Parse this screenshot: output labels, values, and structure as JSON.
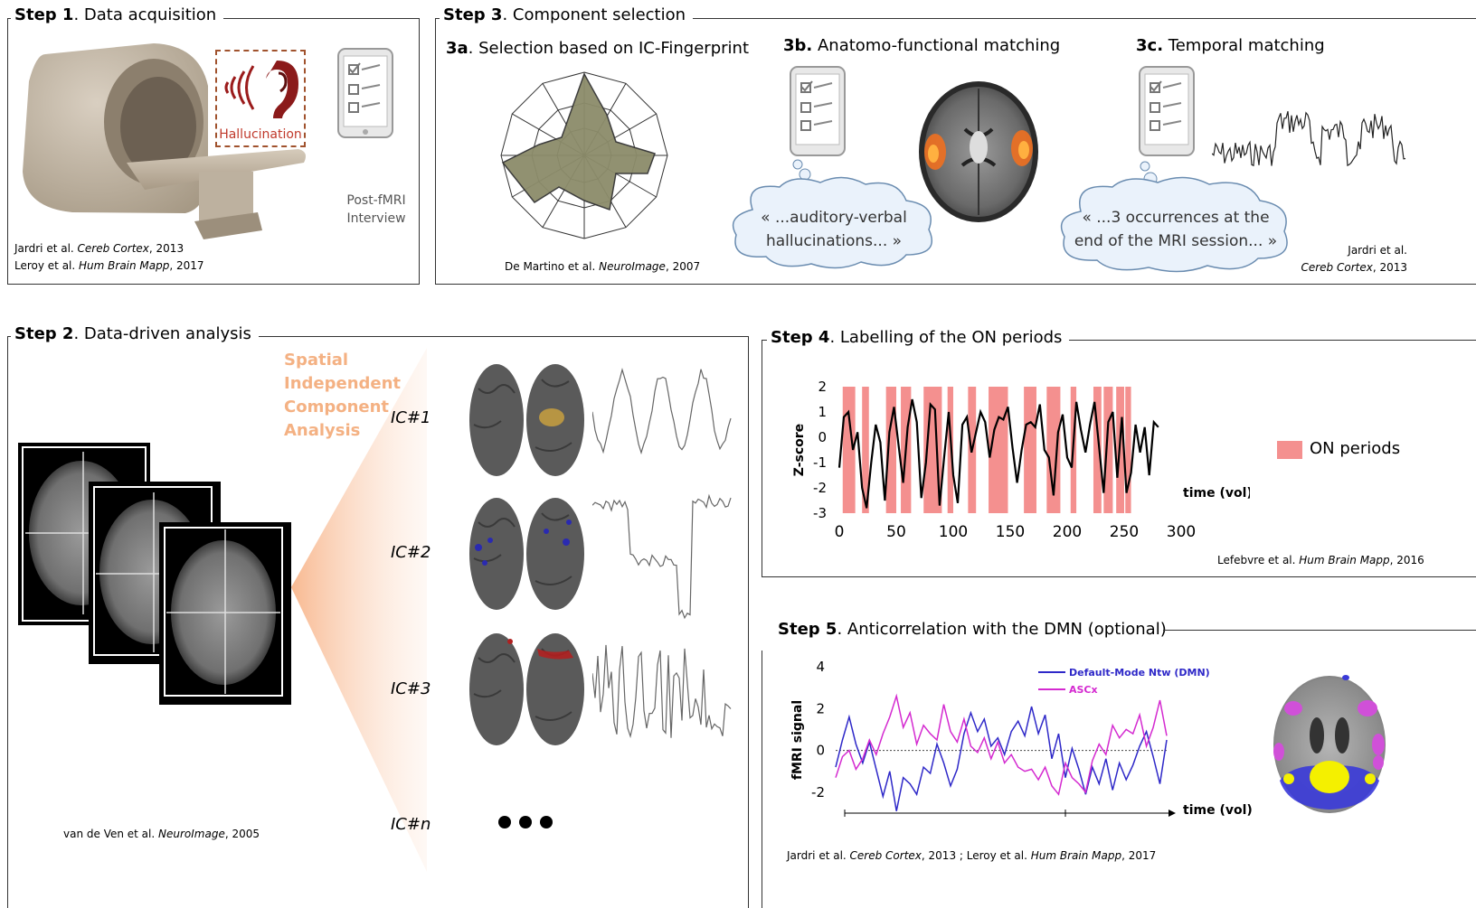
{
  "step1": {
    "title_bold": "Step 1",
    "title_rest": ". Data acquisition",
    "hallucination_label": "Hallucination",
    "interview_label_1": "Post-fMRI",
    "interview_label_2": "Interview",
    "ref1_pre": "Jardri et al. ",
    "ref1_journal": "Cereb Cortex",
    "ref1_post": ", 2013",
    "ref2_pre": "Leroy et al. ",
    "ref2_journal": "Hum Brain Mapp",
    "ref2_post": ", 2017"
  },
  "step3": {
    "title_bold": "Step 3",
    "title_rest": ". Component selection",
    "a_bold": "3a",
    "a_rest": ". Selection based on IC-Fingerprint",
    "b_bold": "3b.",
    "b_rest": " Anatomo-functional matching",
    "c_bold": "3c.",
    "c_rest": " Temporal matching",
    "a_ref_pre": "De Martino  et al. ",
    "a_ref_journal": "NeuroImage",
    "a_ref_post": ", 2007",
    "b_bubble_1": "« ...auditory-verbal",
    "b_bubble_2": "hallucinations... »",
    "c_bubble_1": "« ...3 occurrences at the",
    "c_bubble_2": "end of the MRI session... »",
    "c_ref_1": "Jardri et al.",
    "c_ref_journal": "Cereb Cortex",
    "c_ref_post": ", 2013"
  },
  "step2": {
    "title_bold": "Step 2",
    "title_rest": ". Data-driven analysis",
    "ica_lines": [
      "Spatial",
      "Independent",
      "Component",
      "Analysis"
    ],
    "ic_labels": [
      "IC#1",
      "IC#2",
      "IC#3",
      "IC#n"
    ],
    "ref_pre": "van de Ven et al. ",
    "ref_journal": "NeuroImage",
    "ref_post": ", 2005"
  },
  "step4": {
    "title_bold": "Step 4",
    "title_rest": ". Labelling of the ON periods",
    "legend_label": "ON periods",
    "ref_pre": "Lefebvre et al. ",
    "ref_journal": "Hum Brain Mapp",
    "ref_post": ", 2016"
  },
  "step5": {
    "title_bold": "Step 5",
    "title_rest": ". Anticorrelation with the DMN (optional)",
    "ref_pre": "Jardri et al. ",
    "ref_journal": "Cereb Cortex",
    "ref_mid": ", 2013 ; Leroy et al. ",
    "ref_journal2": "Hum Brain Mapp",
    "ref_post": ", 2017"
  },
  "colors": {
    "on_period": "#f4908f",
    "dmn": "#2e28c8",
    "ascx": "#d42ad0",
    "hallucination": "#c0392b",
    "ica_text": "#f4b183"
  },
  "chart_data": [
    {
      "type": "line",
      "ylabel": "Z-score",
      "xlabel": "time (vol)",
      "xlim": [
        0,
        300
      ],
      "ylim": [
        -3,
        2
      ],
      "xticks": [
        "0",
        "50",
        "100",
        "150",
        "200",
        "250",
        "300"
      ],
      "yticks": [
        "2",
        "1",
        "0",
        "-1",
        "-2",
        "-3"
      ],
      "legend": "right",
      "on_periods": [
        [
          3,
          14
        ],
        [
          20,
          26
        ],
        [
          41,
          50
        ],
        [
          54,
          63
        ],
        [
          74,
          90
        ],
        [
          95,
          100
        ],
        [
          113,
          120
        ],
        [
          131,
          148
        ],
        [
          162,
          173
        ],
        [
          182,
          194
        ],
        [
          203,
          208
        ],
        [
          223,
          230
        ],
        [
          232,
          240
        ],
        [
          243,
          250
        ],
        [
          251,
          256
        ]
      ],
      "series": [
        {
          "name": "",
          "x": [
            0,
            4,
            8,
            12,
            16,
            20,
            24,
            28,
            32,
            36,
            40,
            44,
            48,
            52,
            56,
            60,
            64,
            68,
            72,
            76,
            80,
            84,
            88,
            92,
            96,
            100,
            104,
            108,
            112,
            116,
            120,
            124,
            128,
            132,
            136,
            140,
            144,
            148,
            152,
            156,
            160,
            164,
            168,
            172,
            176,
            180,
            184,
            188,
            192,
            196,
            200,
            204,
            208,
            212,
            216,
            220,
            224,
            228,
            232,
            236,
            240,
            244,
            248,
            252,
            256,
            260,
            264,
            268,
            272,
            276,
            280
          ],
          "y": [
            -1.2,
            0.8,
            1.0,
            -0.5,
            0.2,
            -2.0,
            -2.8,
            -1.0,
            0.5,
            -0.2,
            -2.5,
            0.2,
            1.2,
            -0.3,
            -1.8,
            0.4,
            1.5,
            0.6,
            -2.4,
            -1.0,
            1.3,
            1.1,
            -2.7,
            -0.8,
            1.0,
            -1.5,
            -2.6,
            0.5,
            0.8,
            -0.6,
            0.2,
            1.0,
            0.6,
            -0.8,
            0.3,
            0.8,
            0.7,
            1.2,
            -0.4,
            -1.8,
            -0.5,
            0.5,
            0.6,
            0.4,
            1.3,
            -0.5,
            -0.8,
            -2.3,
            0.2,
            0.9,
            -0.8,
            -1.2,
            1.4,
            0.3,
            -0.6,
            0.5,
            1.4,
            -0.4,
            -2.2,
            0.6,
            1.0,
            -1.6,
            0.8,
            -2.2,
            -1.4,
            0.5,
            -0.6,
            0.4,
            -1.5,
            0.6,
            0.4
          ]
        }
      ]
    },
    {
      "type": "line",
      "ylabel": "fMRI signal",
      "xlabel": "time (vol)",
      "ylim": [
        -3,
        4
      ],
      "yticks": [
        "4",
        "2",
        "0",
        "-2"
      ],
      "legend": "top-right",
      "series": [
        {
          "name": "Default-Mode Ntw (DMN)",
          "values": [
            -0.8,
            0.5,
            1.6,
            0.3,
            -0.6,
            0.4,
            -0.9,
            -2.2,
            -1.0,
            -2.9,
            -1.3,
            -1.6,
            -2.1,
            -0.8,
            -1.1,
            0.3,
            -0.6,
            -1.7,
            -0.9,
            0.8,
            1.8,
            0.9,
            1.5,
            0.2,
            0.6,
            -0.2,
            0.9,
            1.4,
            0.7,
            2.1,
            0.8,
            1.7,
            -0.4,
            0.8,
            -1.3,
            0.1,
            -0.9,
            -2.1,
            -0.8,
            -1.6,
            -0.4,
            -1.9,
            -0.6,
            -1.4,
            -0.7,
            0.2,
            0.9,
            -0.3,
            -1.6,
            0.5
          ]
        },
        {
          "name": "ASCx",
          "values": [
            -1.3,
            -0.3,
            0.0,
            -0.9,
            -0.4,
            0.5,
            -0.2,
            0.8,
            1.6,
            2.6,
            1.1,
            1.8,
            0.3,
            1.2,
            0.8,
            0.5,
            2.2,
            0.9,
            0.4,
            1.5,
            0.2,
            -0.1,
            0.6,
            -0.4,
            0.4,
            -0.6,
            -0.2,
            -0.8,
            -1.0,
            -0.9,
            -1.4,
            -0.8,
            -1.7,
            -2.1,
            -0.6,
            -1.3,
            -1.6,
            -2.0,
            -0.5,
            0.3,
            -0.2,
            1.2,
            0.6,
            1.0,
            0.8,
            1.7,
            0.2,
            1.1,
            2.4,
            0.7
          ]
        }
      ]
    }
  ]
}
